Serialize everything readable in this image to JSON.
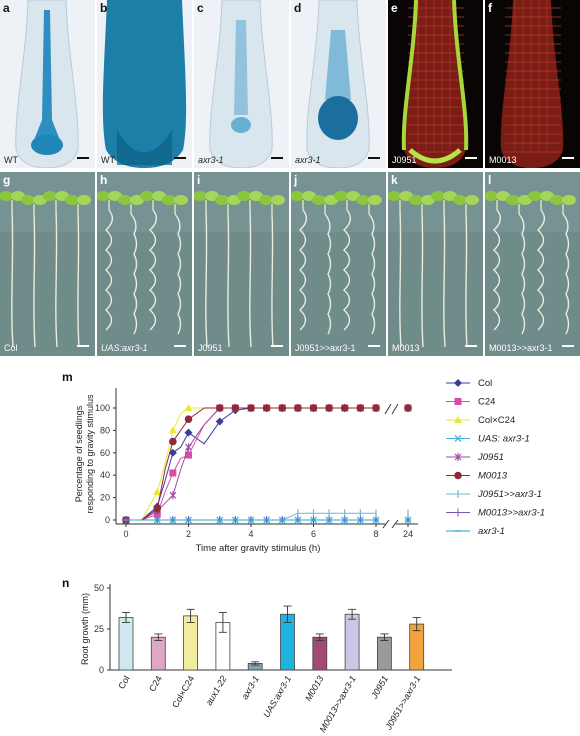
{
  "micrographs": [
    {
      "label": "a",
      "caption": "WT",
      "italic": false,
      "kind": "gus-thin"
    },
    {
      "label": "b",
      "caption": "WT",
      "italic": false,
      "kind": "gus-full"
    },
    {
      "label": "c",
      "caption": "axr3-1",
      "italic": true,
      "kind": "gus-faint"
    },
    {
      "label": "d",
      "caption": "axr3-1",
      "italic": true,
      "kind": "gus-tip"
    },
    {
      "label": "e",
      "caption": "J0951",
      "italic": false,
      "kind": "gfp-edge"
    },
    {
      "label": "f",
      "caption": "M0013",
      "italic": false,
      "kind": "gfp-red"
    }
  ],
  "seedlings": [
    {
      "label": "g",
      "caption": "Col",
      "italic": false
    },
    {
      "label": "h",
      "caption": "UAS:axr3-1",
      "italic": true
    },
    {
      "label": "i",
      "caption": "J0951",
      "italic": false
    },
    {
      "label": "j",
      "caption": "J0951>>axr3-1",
      "italic": false
    },
    {
      "label": "k",
      "caption": "M0013",
      "italic": false
    },
    {
      "label": "l",
      "caption": "M0013>>axr3-1",
      "italic": false
    }
  ],
  "chart_data": [
    {
      "panel": "m",
      "type": "line",
      "ylabel": "Percentage of seedlings responding to gravity stimulus",
      "xlabel": "Time after gravity stimulus (h)",
      "ylim": [
        0,
        100
      ],
      "yticks": [
        0,
        20,
        40,
        60,
        80,
        100
      ],
      "xticks": [
        "0",
        "2",
        "4",
        "6",
        "8",
        "24"
      ],
      "axis_break": true,
      "legend_position": "right",
      "x": [
        0,
        0.5,
        1,
        1.25,
        1.5,
        1.75,
        2,
        2.5,
        3,
        3.5,
        4,
        4.5,
        5,
        5.5,
        6,
        6.5,
        7,
        7.5,
        8,
        24
      ],
      "series": [
        {
          "name": "Col",
          "color": "#3b3b9c",
          "marker": "diamond",
          "italic": false,
          "values": [
            0,
            0,
            12,
            35,
            60,
            65,
            78,
            68,
            88,
            98,
            100,
            100,
            100,
            100,
            100,
            100,
            100,
            100,
            100,
            100
          ]
        },
        {
          "name": "C24",
          "color": "#d94ca5",
          "marker": "square",
          "italic": false,
          "values": [
            0,
            0,
            5,
            25,
            42,
            55,
            58,
            85,
            100,
            100,
            100,
            100,
            100,
            100,
            100,
            100,
            100,
            100,
            100,
            100
          ]
        },
        {
          "name": "Col×C24",
          "color": "#e8e838",
          "marker": "triangle",
          "italic": false,
          "values": [
            0,
            0,
            25,
            50,
            80,
            95,
            100,
            100,
            100,
            100,
            100,
            100,
            100,
            100,
            100,
            100,
            100,
            100,
            100,
            100
          ]
        },
        {
          "name": "UAS: axr3-1",
          "color": "#46b6d9",
          "marker": "x",
          "italic": true,
          "values": [
            0,
            0,
            0,
            0,
            0,
            0,
            0,
            0,
            0,
            0,
            0,
            0,
            0,
            0,
            0,
            0,
            0,
            0,
            0,
            0
          ]
        },
        {
          "name": "J0951",
          "color": "#a04aa8",
          "marker": "star",
          "italic": true,
          "values": [
            0,
            0,
            8,
            15,
            22,
            45,
            65,
            85,
            100,
            100,
            100,
            100,
            100,
            100,
            100,
            100,
            100,
            100,
            100,
            100
          ]
        },
        {
          "name": "M0013",
          "color": "#8e2a3a",
          "marker": "circle",
          "italic": true,
          "values": [
            0,
            0,
            10,
            45,
            70,
            80,
            90,
            100,
            100,
            100,
            100,
            100,
            100,
            100,
            100,
            100,
            100,
            100,
            100,
            100
          ]
        },
        {
          "name": "J0951>>axr3-1",
          "color": "#6cb8d9",
          "marker": "plus",
          "italic": true,
          "values": [
            0,
            0,
            0,
            0,
            0,
            0,
            0,
            0,
            0,
            0,
            0,
            0,
            0,
            6,
            6,
            6,
            6,
            6,
            6,
            6
          ]
        },
        {
          "name": "M0013>>axr3-1",
          "color": "#7855b8",
          "marker": "bar",
          "italic": true,
          "values": [
            0,
            0,
            0,
            0,
            0,
            0,
            0,
            0,
            0,
            0,
            0,
            0,
            0,
            0,
            0,
            0,
            0,
            0,
            0,
            0
          ]
        },
        {
          "name": "axr3-1",
          "color": "#2aa5d6",
          "marker": "dash",
          "italic": true,
          "values": [
            0,
            0,
            0,
            0,
            0,
            0,
            0,
            0,
            0,
            0,
            0,
            0,
            0,
            0,
            0,
            0,
            0,
            0,
            0,
            0
          ]
        }
      ]
    },
    {
      "panel": "n",
      "type": "bar",
      "ylabel": "Root growth (mm)",
      "ylim": [
        0,
        50
      ],
      "yticks": [
        0,
        25,
        50
      ],
      "categories": [
        "Col",
        "C24",
        "Col×C24",
        "aux1-22",
        "axr3-1",
        "UAS:axr3-1",
        "M0013",
        "M0013>>axr3-1",
        "J0951",
        "J0951>>axr3-1"
      ],
      "values": [
        32,
        20,
        33,
        29,
        4,
        34,
        20,
        34,
        20,
        28
      ],
      "errors": [
        3,
        2,
        4,
        6,
        1,
        5,
        2,
        3,
        2,
        4
      ],
      "colors": [
        "#cfe7ee",
        "#dfa7c4",
        "#f1ec9f",
        "#ffffff",
        "#7fa6ad",
        "#1eb3e0",
        "#a34a72",
        "#c9c8e6",
        "#9a9a9a",
        "#f2a33c"
      ]
    }
  ]
}
